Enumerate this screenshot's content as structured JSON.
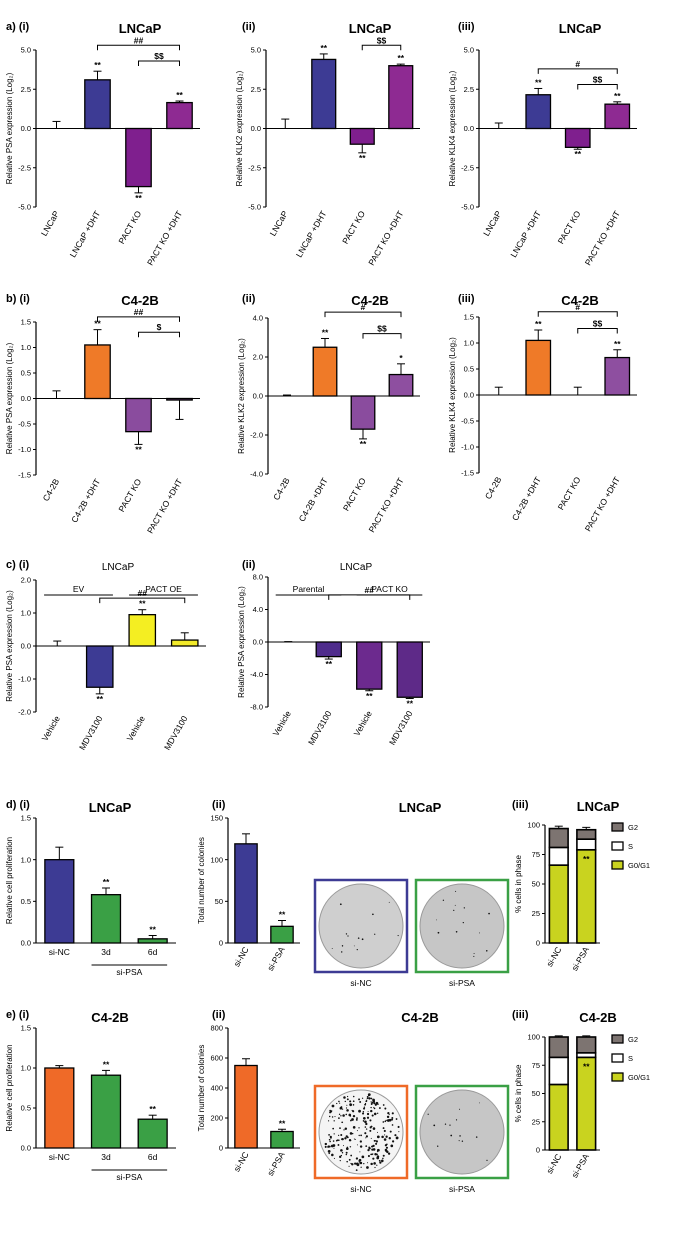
{
  "chart_data": [
    {
      "id": "a_i",
      "type": "bar",
      "panel_label": "a) (i)",
      "title": "LNCaP",
      "ylabel": "Relative PSA expression (Log₂)",
      "ylim": [
        -5,
        5
      ],
      "yticks": [
        -5,
        -2.5,
        0,
        2.5,
        5
      ],
      "ytick_labels": [
        "-5.0",
        "-2.5",
        "0.0",
        "2.5",
        "5.0"
      ],
      "categories": [
        "LNCaP",
        "LNCaP +DHT",
        "PACT KO",
        "PACT KO +DHT"
      ],
      "values": [
        0,
        3.1,
        -3.7,
        1.65
      ],
      "errors": [
        0.45,
        0.55,
        0.4,
        0.1
      ],
      "colors": [
        "#ffffff",
        "#3d3b94",
        "#7f1f8e",
        "#8e2a92"
      ],
      "stars": [
        "",
        "**",
        "**",
        "**"
      ],
      "brackets": [
        {
          "from": 2,
          "to": 3,
          "label": "$$",
          "y": 4.3
        },
        {
          "from": 1,
          "to": 3,
          "label": "##",
          "y": 5.3
        }
      ]
    },
    {
      "id": "a_ii",
      "type": "bar",
      "panel_label": "(ii)",
      "title": "LNCaP",
      "ylabel": "Relative KLK2 expression (Log₂)",
      "ylim": [
        -5,
        5
      ],
      "yticks": [
        -5,
        -2.5,
        0,
        2.5,
        5
      ],
      "ytick_labels": [
        "-5.0",
        "-2.5",
        "0.0",
        "2.5",
        "5.0"
      ],
      "categories": [
        "LNCaP",
        "LNCaP +DHT",
        "PACT KO",
        "PACT KO +DHT"
      ],
      "values": [
        0,
        4.4,
        -1.0,
        4.0
      ],
      "errors": [
        0.6,
        0.35,
        0.55,
        0.1
      ],
      "colors": [
        "#ffffff",
        "#3d3b94",
        "#7f1f8e",
        "#8e2a92"
      ],
      "stars": [
        "",
        "**",
        "**",
        "**"
      ],
      "brackets": [
        {
          "from": 2,
          "to": 3,
          "label": "$$",
          "y": 5.3
        }
      ]
    },
    {
      "id": "a_iii",
      "type": "bar",
      "panel_label": "(iii)",
      "title": "LNCaP",
      "ylabel": "Relative KLK4 expression (Log₂)",
      "ylim": [
        -5,
        5
      ],
      "yticks": [
        -5,
        -2.5,
        0,
        2.5,
        5
      ],
      "ytick_labels": [
        "-5.0",
        "-2.5",
        "0.0",
        "2.5",
        "5.0"
      ],
      "categories": [
        "LNCaP",
        "LNCaP +DHT",
        "PACT KO",
        "PACT KO +DHT"
      ],
      "values": [
        0,
        2.15,
        -1.2,
        1.55
      ],
      "errors": [
        0.35,
        0.4,
        0.12,
        0.15
      ],
      "colors": [
        "#ffffff",
        "#3d3b94",
        "#7f1f8e",
        "#8e2a92"
      ],
      "stars": [
        "",
        "**",
        "**",
        "**"
      ],
      "brackets": [
        {
          "from": 2,
          "to": 3,
          "label": "$$",
          "y": 2.8
        },
        {
          "from": 1,
          "to": 3,
          "label": "#",
          "y": 3.8
        }
      ]
    },
    {
      "id": "b_i",
      "type": "bar",
      "panel_label": "b) (i)",
      "title": "C4-2B",
      "ylabel": "Relative PSA expression (Log₂)",
      "ylim": [
        -1.5,
        1.5
      ],
      "yticks": [
        -1.5,
        -1,
        -0.5,
        0,
        0.5,
        1,
        1.5
      ],
      "ytick_labels": [
        "-1.5",
        "-1.0",
        "-0.5",
        "0.0",
        "0.5",
        "1.0",
        "1.5"
      ],
      "categories": [
        "C4-2B",
        "C4-2B +DHT",
        "PACT KO",
        "PACT KO +DHT"
      ],
      "values": [
        0,
        1.05,
        -0.65,
        -0.03
      ],
      "errors": [
        0.15,
        0.3,
        0.25,
        0.38
      ],
      "colors": [
        "#ffffff",
        "#ef7a28",
        "#8a4c9e",
        "#8e4fa0"
      ],
      "stars": [
        "",
        "**",
        "**",
        ""
      ],
      "brackets": [
        {
          "from": 2,
          "to": 3,
          "label": "$",
          "y": 1.3
        },
        {
          "from": 1,
          "to": 3,
          "label": "##",
          "y": 1.6
        }
      ]
    },
    {
      "id": "b_ii",
      "type": "bar",
      "panel_label": "(ii)",
      "title": "C4-2B",
      "ylabel": "Relative KLK2 expression (Log₂)",
      "ylim": [
        -4,
        4
      ],
      "yticks": [
        -4,
        -2,
        0,
        2,
        4
      ],
      "ytick_labels": [
        "-4.0",
        "-2.0",
        "0.0",
        "2.0",
        "4.0"
      ],
      "categories": [
        "C4-2B",
        "C4-2B +DHT",
        "PACT KO",
        "PACT KO +DHT"
      ],
      "values": [
        0,
        2.5,
        -1.7,
        1.1
      ],
      "errors": [
        0.05,
        0.45,
        0.5,
        0.55
      ],
      "colors": [
        "#ffffff",
        "#ef7a28",
        "#8a4c9e",
        "#8e4fa0"
      ],
      "stars": [
        "",
        "**",
        "**",
        "*"
      ],
      "brackets": [
        {
          "from": 2,
          "to": 3,
          "label": "$$",
          "y": 3.2
        },
        {
          "from": 1,
          "to": 3,
          "label": "#",
          "y": 4.3
        }
      ]
    },
    {
      "id": "b_iii",
      "type": "bar",
      "panel_label": "(iii)",
      "title": "C4-2B",
      "ylabel": "Relative KLK4 expression (Log₂)",
      "ylim": [
        -1.5,
        1.5
      ],
      "yticks": [
        -1.5,
        -1,
        -0.5,
        0,
        0.5,
        1,
        1.5
      ],
      "ytick_labels": [
        "-1.5",
        "-1.0",
        "-0.5",
        "0.0",
        "0.5",
        "1.0",
        "1.5"
      ],
      "categories": [
        "C4-2B",
        "C4-2B +DHT",
        "PACT KO",
        "PACT KO +DHT"
      ],
      "values": [
        0,
        1.05,
        0,
        0.72
      ],
      "errors": [
        0.15,
        0.2,
        0.15,
        0.15
      ],
      "colors": [
        "#ffffff",
        "#ef7a28",
        "#8a4c9e",
        "#8e4fa0"
      ],
      "stars": [
        "",
        "**",
        "",
        "**"
      ],
      "brackets": [
        {
          "from": 2,
          "to": 3,
          "label": "$$",
          "y": 1.28
        },
        {
          "from": 1,
          "to": 3,
          "label": "#",
          "y": 1.6
        }
      ]
    },
    {
      "id": "c_i",
      "type": "bar",
      "panel_label": "c)  (i)",
      "title": "LNCaP",
      "title_bold": false,
      "ylabel": "Relative PSA expression (Log₂)",
      "ylim": [
        -2,
        2
      ],
      "yticks": [
        -2,
        -1,
        0,
        1,
        2
      ],
      "ytick_labels": [
        "-2.0",
        "-1.0",
        "0.0",
        "1.0",
        "2.0"
      ],
      "categories": [
        "Vehicle",
        "MDV3100",
        "Vehicle",
        "MDV3100"
      ],
      "values": [
        0,
        -1.25,
        0.95,
        0.18
      ],
      "errors": [
        0.15,
        0.2,
        0.15,
        0.22
      ],
      "colors": [
        "#ffffff",
        "#3d3b94",
        "#f4ee22",
        "#f2ea2a"
      ],
      "stars": [
        "",
        "**",
        "**",
        ""
      ],
      "groups": [
        {
          "label": "EV",
          "from": 0,
          "to": 1
        },
        {
          "label": "PACT OE",
          "from": 2,
          "to": 3
        }
      ],
      "brackets": [
        {
          "from": 1,
          "to": 3,
          "label": "##",
          "y": 1.45
        }
      ]
    },
    {
      "id": "c_ii",
      "type": "bar",
      "panel_label": "(ii)",
      "title": "LNCaP",
      "title_bold": false,
      "ylabel": "Relative PSA expression (Log₂)",
      "ylim": [
        -8,
        8
      ],
      "yticks": [
        -8,
        -4,
        0,
        4,
        8
      ],
      "ytick_labels": [
        "-8.0",
        "-4.0",
        "0.0",
        "4.0",
        "8.0"
      ],
      "categories": [
        "Vehicle",
        "MDV3100",
        "Vehicle",
        "MDV3100"
      ],
      "values": [
        0,
        -1.8,
        -5.8,
        -6.8
      ],
      "errors": [
        0.05,
        0.3,
        0.2,
        0.15
      ],
      "colors": [
        "#ffffff",
        "#4f2c8c",
        "#6c2a8e",
        "#5e2a88"
      ],
      "stars": [
        "",
        "**",
        "**",
        "**"
      ],
      "groups": [
        {
          "label": "Parental",
          "from": 0,
          "to": 1
        },
        {
          "label": "PACT KO",
          "from": 2,
          "to": 3
        }
      ],
      "brackets": [
        {
          "from": 1,
          "to": 3,
          "label": "##",
          "y": 5.8
        }
      ]
    },
    {
      "id": "d_i",
      "type": "bar",
      "panel_label": "d) (i)",
      "title": "LNCaP",
      "ylabel": "Relative cell proliferation",
      "ylim": [
        0,
        1.5
      ],
      "yticks": [
        0,
        0.5,
        1,
        1.5
      ],
      "ytick_labels": [
        "0.0",
        "0.5",
        "1.0",
        "1.5"
      ],
      "categories": [
        "si-NC",
        "3d",
        "6d"
      ],
      "values": [
        1.0,
        0.58,
        0.05
      ],
      "errors": [
        0.15,
        0.08,
        0.04
      ],
      "colors": [
        "#3d3b94",
        "#3aa045",
        "#3aa045"
      ],
      "stars": [
        "",
        "**",
        "**"
      ],
      "sub_group": {
        "label": "si-PSA",
        "from": 1,
        "to": 2
      }
    },
    {
      "id": "d_ii",
      "type": "bar",
      "panel_label": "(ii)",
      "title": "LNCaP",
      "ylabel": "Total number of colonies",
      "ylim": [
        0,
        150
      ],
      "yticks": [
        0,
        50,
        100,
        150
      ],
      "ytick_labels": [
        "0",
        "50",
        "100",
        "150"
      ],
      "categories": [
        "si-NC",
        "si-PSA"
      ],
      "values": [
        119,
        20
      ],
      "errors": [
        12,
        7
      ],
      "colors": [
        "#3d3b94",
        "#3aa045"
      ],
      "stars": [
        "",
        "**"
      ],
      "images": [
        {
          "label": "si-NC",
          "frame": "#3d3b94",
          "style": "sparse"
        },
        {
          "label": "si-PSA",
          "frame": "#3aa045",
          "style": "sparse"
        }
      ]
    },
    {
      "id": "d_iii",
      "type": "stacked_bar",
      "panel_label": "(iii)",
      "title": "LNCaP",
      "ylabel": "% cells in phase",
      "ylim": [
        0,
        100
      ],
      "yticks": [
        0,
        25,
        50,
        75,
        100
      ],
      "ytick_labels": [
        "0",
        "25",
        "50",
        "75",
        "100"
      ],
      "categories": [
        "si-NC",
        "si-PSA"
      ],
      "series": [
        {
          "name": "G0/G1",
          "color": "#c9d31f",
          "values": [
            66,
            79
          ],
          "errors": [
            5,
            4
          ]
        },
        {
          "name": "S",
          "color": "#ffffff",
          "values": [
            15,
            9
          ],
          "errors": [
            4,
            3
          ]
        },
        {
          "name": "G2",
          "color": "#7d7471",
          "values": [
            16,
            8
          ],
          "errors": [
            2,
            2
          ]
        }
      ],
      "stars": [
        "",
        "**"
      ],
      "legend": [
        "G2",
        "S",
        "G0/G1"
      ]
    },
    {
      "id": "e_i",
      "type": "bar",
      "panel_label": "e) (i)",
      "title": "C4-2B",
      "ylabel": "Relative cell proliferation",
      "ylim": [
        0,
        1.5
      ],
      "yticks": [
        0,
        0.5,
        1,
        1.5
      ],
      "ytick_labels": [
        "0.0",
        "0.5",
        "1.0",
        "1.5"
      ],
      "categories": [
        "si-NC",
        "3d",
        "6d"
      ],
      "values": [
        1.0,
        0.91,
        0.36
      ],
      "errors": [
        0.03,
        0.06,
        0.05
      ],
      "colors": [
        "#ef6a28",
        "#3aa045",
        "#3aa045"
      ],
      "stars": [
        "",
        "**",
        "**"
      ],
      "sub_group": {
        "label": "si-PSA",
        "from": 1,
        "to": 2
      }
    },
    {
      "id": "e_ii",
      "type": "bar",
      "panel_label": "(ii)",
      "title": "C4-2B",
      "ylabel": "Total number of colonies",
      "ylim": [
        0,
        800
      ],
      "yticks": [
        0,
        200,
        400,
        600,
        800
      ],
      "ytick_labels": [
        "0",
        "200",
        "400",
        "600",
        "800"
      ],
      "categories": [
        "si-NC",
        "si-PSA"
      ],
      "values": [
        550,
        110
      ],
      "errors": [
        45,
        15
      ],
      "colors": [
        "#ef6a28",
        "#3aa045"
      ],
      "stars": [
        "",
        "**"
      ],
      "images": [
        {
          "label": "si-NC",
          "frame": "#ef6a28",
          "style": "dense"
        },
        {
          "label": "si-PSA",
          "frame": "#3aa045",
          "style": "sparse"
        }
      ]
    },
    {
      "id": "e_iii",
      "type": "stacked_bar",
      "panel_label": "(iii)",
      "title": "C4-2B",
      "ylabel": "% cells in phase",
      "ylim": [
        0,
        100
      ],
      "yticks": [
        0,
        25,
        50,
        75,
        100
      ],
      "ytick_labels": [
        "0",
        "25",
        "50",
        "75",
        "100"
      ],
      "categories": [
        "si-NC",
        "si-PSA"
      ],
      "series": [
        {
          "name": "G0/G1",
          "color": "#c9d31f",
          "values": [
            58,
            82
          ],
          "errors": [
            1,
            2
          ]
        },
        {
          "name": "S",
          "color": "#ffffff",
          "values": [
            24,
            4
          ],
          "errors": [
            1,
            1
          ]
        },
        {
          "name": "G2",
          "color": "#7d7471",
          "values": [
            18,
            14
          ],
          "errors": [
            1,
            1
          ]
        }
      ],
      "stars": [
        "",
        "**"
      ],
      "legend": [
        "G2",
        "S",
        "G0/G1"
      ]
    }
  ]
}
